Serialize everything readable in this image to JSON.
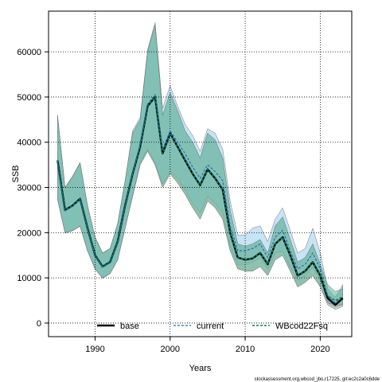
{
  "chart_data": {
    "type": "area",
    "xlabel": "Years",
    "ylabel": "SSB",
    "xlim": [
      1983.8,
      2024.2
    ],
    "ylim": [
      -3000,
      69000
    ],
    "xticks": [
      1990,
      2000,
      2010,
      2020
    ],
    "yticks": [
      0,
      10000,
      20000,
      30000,
      40000,
      50000,
      60000
    ],
    "grid": true,
    "legend_placement": "bottom-center",
    "watermark": "stockassessment.org,wbcod_jbo,r17225, git:ec2c2a0c6dde",
    "x": [
      1985,
      1986,
      1987,
      1988,
      1989,
      1990,
      1991,
      1992,
      1993,
      1994,
      1995,
      1996,
      1997,
      1998,
      1999,
      2000,
      2001,
      2002,
      2003,
      2004,
      2005,
      2006,
      2007,
      2008,
      2009,
      2010,
      2011,
      2012,
      2013,
      2014,
      2015,
      2016,
      2017,
      2018,
      2019,
      2020,
      2021,
      2022,
      2023
    ],
    "series": [
      {
        "name": "base",
        "color": "#000000",
        "fill": "#9a9a9a",
        "line_style": "solid",
        "values": [
          36000,
          25000,
          26000,
          27500,
          21000,
          15000,
          12500,
          13500,
          18000,
          26000,
          33000,
          39000,
          48000,
          50000,
          37500,
          42000,
          39000,
          36000,
          33000,
          30500,
          34000,
          32000,
          29500,
          20000,
          14500,
          14000,
          14300,
          15500,
          13000,
          17500,
          19000,
          15000,
          10500,
          11500,
          13500,
          10500,
          5500,
          4000,
          5500
        ],
        "lower": [
          27500,
          20000,
          20500,
          21500,
          16000,
          12000,
          10000,
          11000,
          14000,
          21000,
          28000,
          35000,
          38000,
          35000,
          30000,
          33000,
          31000,
          28500,
          25500,
          23000,
          27000,
          25500,
          23000,
          16000,
          12000,
          11500,
          11500,
          12500,
          10500,
          14000,
          15000,
          11500,
          8000,
          9000,
          10500,
          8000,
          4000,
          3000,
          3700
        ],
        "upper": [
          46000,
          30000,
          32500,
          35500,
          26000,
          19000,
          15500,
          16500,
          22000,
          31500,
          42000,
          45000,
          60000,
          66000,
          46000,
          51000,
          47000,
          42500,
          40000,
          36500,
          42000,
          40500,
          36500,
          25000,
          17500,
          17000,
          17500,
          18500,
          15500,
          21500,
          23500,
          18500,
          13500,
          14500,
          17500,
          13000,
          7200,
          5500,
          8000
        ]
      },
      {
        "name": "current",
        "color": "#1f6fb4",
        "fill": "#8ec9ec",
        "line_style": "dashed",
        "values": [
          35500,
          24800,
          25800,
          27300,
          20900,
          14900,
          12400,
          13400,
          17900,
          25900,
          33200,
          39500,
          48500,
          50500,
          38500,
          42500,
          40000,
          37500,
          34500,
          32000,
          35000,
          33500,
          31500,
          21500,
          16000,
          16000,
          16500,
          17500,
          14500,
          19000,
          20500,
          16000,
          12000,
          13000,
          15500,
          12000,
          6000,
          4500,
          6000
        ],
        "lower": [
          27300,
          19900,
          20400,
          21400,
          15900,
          11900,
          9900,
          10900,
          13900,
          20900,
          28200,
          35500,
          38500,
          35500,
          30800,
          33500,
          32000,
          29500,
          26500,
          24500,
          28000,
          26500,
          24500,
          17000,
          13000,
          13000,
          13500,
          14500,
          12000,
          15500,
          16000,
          12500,
          9500,
          10500,
          12500,
          9500,
          4500,
          3500,
          4200
        ],
        "upper": [
          45800,
          29800,
          32300,
          35300,
          25900,
          18900,
          15400,
          16400,
          21900,
          31400,
          42500,
          45500,
          60500,
          66500,
          47500,
          52500,
          48000,
          44000,
          41500,
          38000,
          43000,
          42000,
          38500,
          27000,
          19500,
          19500,
          21000,
          21500,
          18000,
          23000,
          25500,
          20500,
          15500,
          16500,
          21000,
          15500,
          7700,
          5800,
          8500
        ]
      },
      {
        "name": "WBcod22Fsq",
        "color": "#0d7a5f",
        "fill": "#5fb896",
        "line_style": "dashed",
        "values": [
          36000,
          25000,
          26000,
          27500,
          21000,
          15000,
          12500,
          13500,
          18000,
          26000,
          33000,
          39000,
          48000,
          50000,
          37500,
          42000,
          39000,
          36000,
          33000,
          30500,
          34000,
          32000,
          29500,
          20000,
          14500,
          14000,
          14300,
          15500,
          13000,
          17500,
          19000,
          15000,
          10500,
          11500,
          13500,
          10500,
          6000,
          5000,
          5800
        ],
        "lower": [
          27500,
          20000,
          20500,
          21500,
          16000,
          12000,
          10000,
          11000,
          14000,
          21000,
          28000,
          35000,
          38000,
          35000,
          30000,
          33000,
          31000,
          28500,
          25500,
          23000,
          27000,
          25500,
          23000,
          16000,
          12000,
          11500,
          11500,
          12500,
          10500,
          14000,
          15000,
          11500,
          8000,
          9000,
          10500,
          8000,
          4500,
          4000,
          4000
        ],
        "upper": [
          46000,
          30000,
          32500,
          35500,
          26000,
          19000,
          15500,
          16500,
          22000,
          31500,
          42000,
          45000,
          60000,
          66000,
          46000,
          51000,
          47000,
          42500,
          40000,
          36500,
          42000,
          40500,
          36500,
          25000,
          17500,
          17000,
          17500,
          18500,
          15500,
          21500,
          23500,
          18500,
          13500,
          14500,
          17500,
          13000,
          8500,
          7000,
          7500
        ]
      }
    ]
  }
}
